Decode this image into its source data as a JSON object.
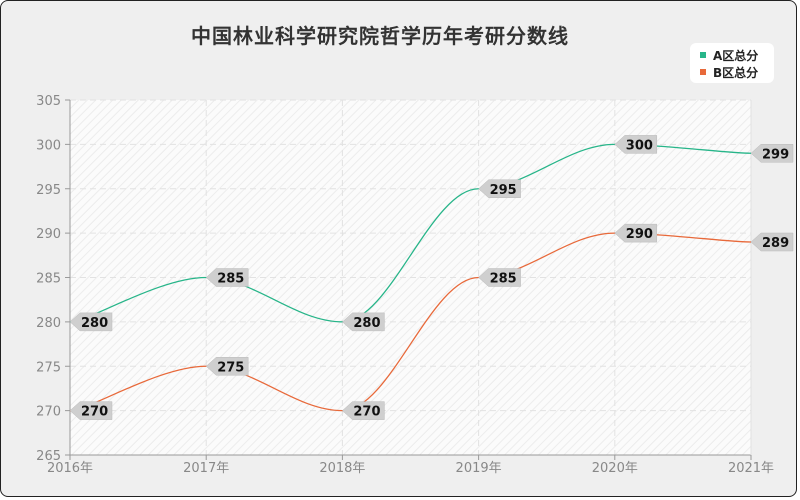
{
  "chart_data": {
    "type": "line",
    "title": "中国林业科学研究院哲学历年考研分数线",
    "xlabel": "",
    "ylabel": "",
    "categories": [
      "2016年",
      "2017年",
      "2018年",
      "2019年",
      "2020年",
      "2021年"
    ],
    "series": [
      {
        "name": "A区总分",
        "color": "#27b589",
        "values": [
          280,
          285,
          280,
          295,
          300,
          299
        ]
      },
      {
        "name": "B区总分",
        "color": "#e8693a",
        "values": [
          270,
          275,
          270,
          285,
          290,
          289
        ]
      }
    ],
    "ylim": [
      265,
      305
    ],
    "yticks": [
      265,
      270,
      275,
      280,
      285,
      290,
      295,
      300,
      305
    ],
    "grid": true,
    "legend_position": "top-right",
    "smooth": true
  },
  "legend": {
    "items": [
      {
        "label": "A区总分",
        "color": "#27b589"
      },
      {
        "label": "B区总分",
        "color": "#e8693a"
      }
    ]
  }
}
